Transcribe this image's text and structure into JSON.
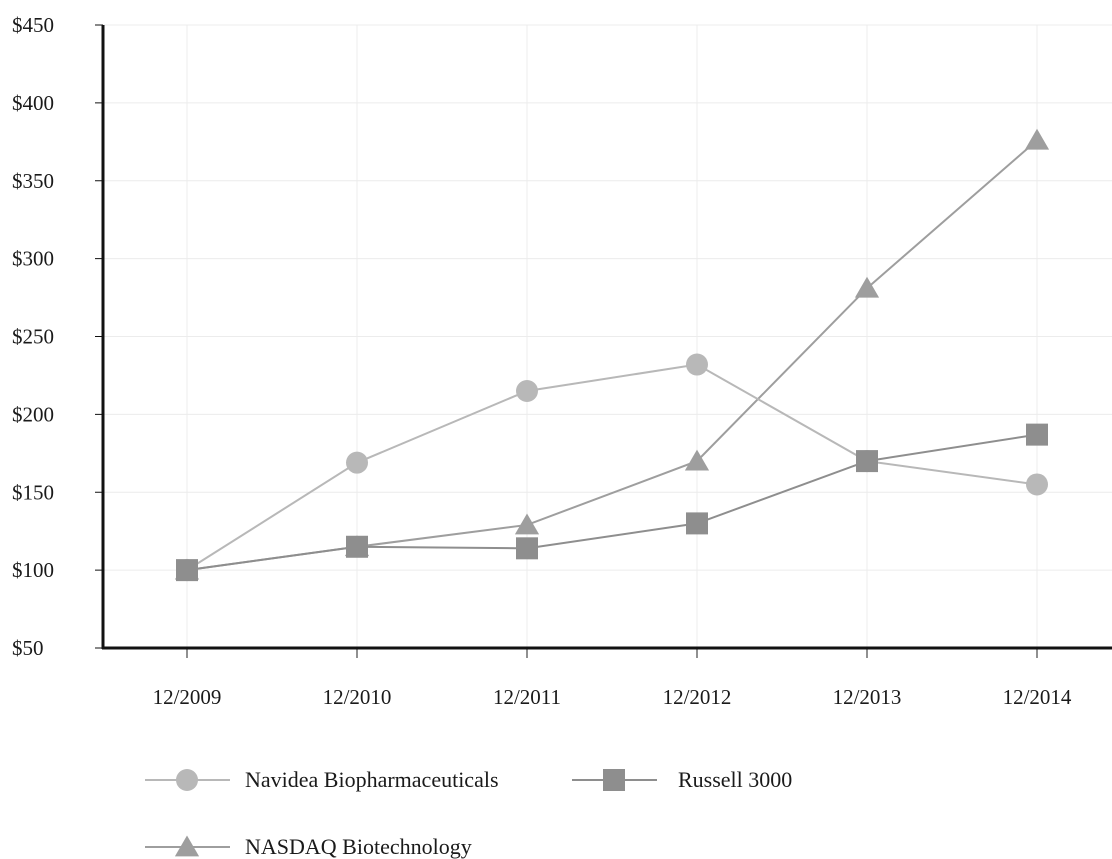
{
  "chart_data": {
    "type": "line",
    "categories": [
      "12/2009",
      "12/2010",
      "12/2011",
      "12/2012",
      "12/2013",
      "12/2014"
    ],
    "yticks": [
      "$50",
      "$100",
      "$150",
      "$200",
      "$250",
      "$300",
      "$350",
      "$400",
      "$450"
    ],
    "ylim": [
      50,
      450
    ],
    "grid": true,
    "legend_position": "bottom",
    "series": [
      {
        "name": "Navidea Biopharmaceuticals",
        "marker": "circle",
        "color": "#b8b8b8",
        "values": [
          100,
          169,
          215,
          232,
          170,
          155
        ]
      },
      {
        "name": "Russell 3000",
        "marker": "square",
        "color": "#8e8e8e",
        "values": [
          100,
          115,
          114,
          130,
          170,
          187
        ]
      },
      {
        "name": "NASDAQ Biotechnology",
        "marker": "triangle",
        "color": "#9e9e9e",
        "values": [
          100,
          115,
          129,
          170,
          281,
          376
        ]
      }
    ]
  }
}
